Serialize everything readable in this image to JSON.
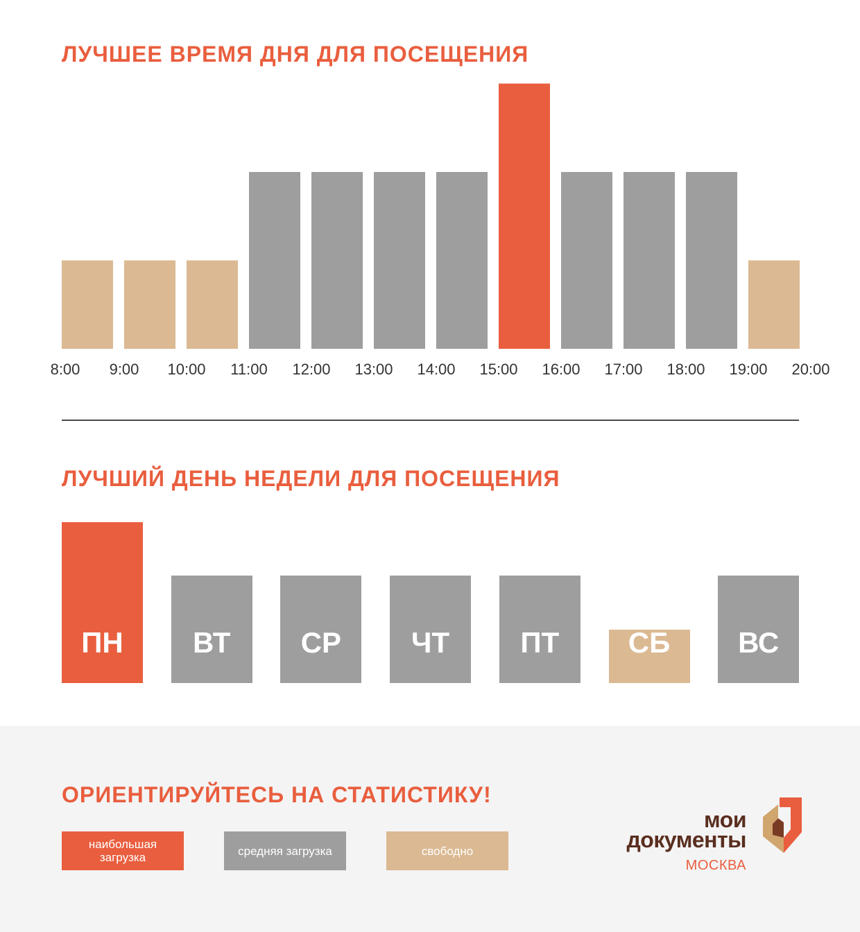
{
  "colors": {
    "peak": "#e95e3e",
    "medium": "#9e9e9e",
    "free": "#dbb992",
    "title": "#e95e3e",
    "logo_brown": "#5a2e1f"
  },
  "section1": {
    "title": "ЛУЧШЕЕ ВРЕМЯ ДНЯ ДЛЯ ПОСЕЩЕНИЯ"
  },
  "section2": {
    "title": "ЛУЧШИЙ ДЕНЬ НЕДЕЛИ ДЛЯ ПОСЕЩЕНИЯ"
  },
  "chart_data": [
    {
      "type": "bar",
      "title": "ЛУЧШЕЕ ВРЕМЯ ДНЯ ДЛЯ ПОСЕЩЕНИЯ",
      "tick_labels": [
        "8:00",
        "9:00",
        "10:00",
        "11:00",
        "12:00",
        "13:00",
        "14:00",
        "15:00",
        "16:00",
        "17:00",
        "18:00",
        "19:00",
        "20:00"
      ],
      "intervals": [
        "8:00–9:00",
        "9:00–10:00",
        "10:00–11:00",
        "11:00–12:00",
        "12:00–13:00",
        "13:00–14:00",
        "14:00–15:00",
        "15:00–16:00",
        "16:00–17:00",
        "17:00–18:00",
        "18:00–19:00",
        "19:00–20:00"
      ],
      "values": [
        1,
        1,
        1,
        2,
        2,
        2,
        2,
        3,
        2,
        2,
        2,
        1
      ],
      "level_colors": {
        "1": "free",
        "2": "medium",
        "3": "peak"
      },
      "ylim": [
        0,
        3
      ],
      "grid": false
    },
    {
      "type": "bar",
      "title": "ЛУЧШИЙ ДЕНЬ НЕДЕЛИ ДЛЯ ПОСЕЩЕНИЯ",
      "categories": [
        "ПН",
        "ВТ",
        "СР",
        "ЧТ",
        "ПТ",
        "СБ",
        "ВС"
      ],
      "values": [
        3,
        2,
        2,
        2,
        2,
        1,
        2
      ],
      "level_colors": {
        "1": "free",
        "2": "medium",
        "3": "peak"
      },
      "ylim": [
        0,
        3
      ],
      "grid": false
    }
  ],
  "footer": {
    "title": "ОРИЕНТИРУЙТЕСЬ НА СТАТИСТИКУ!",
    "legend": [
      {
        "label": "наибольшая загрузка",
        "color": "#e95e3e"
      },
      {
        "label": "средняя загрузка",
        "color": "#9e9e9e"
      },
      {
        "label": "свободно",
        "color": "#dbb992"
      }
    ]
  },
  "logo": {
    "line1": "мои",
    "line2": "документы",
    "line3": "МОСКВА"
  }
}
